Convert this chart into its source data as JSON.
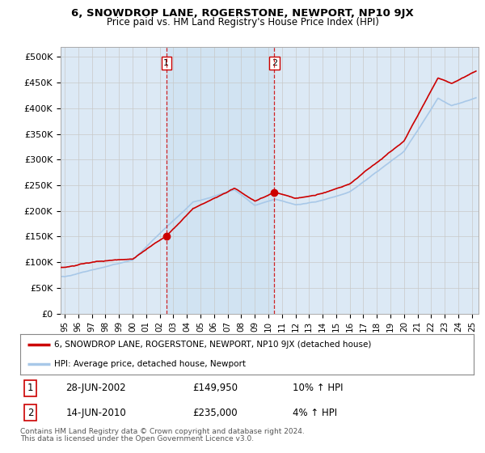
{
  "title": "6, SNOWDROP LANE, ROGERSTONE, NEWPORT, NP10 9JX",
  "subtitle": "Price paid vs. HM Land Registry's House Price Index (HPI)",
  "legend_line1": "6, SNOWDROP LANE, ROGERSTONE, NEWPORT, NP10 9JX (detached house)",
  "legend_line2": "HPI: Average price, detached house, Newport",
  "table_rows": [
    {
      "num": "1",
      "date": "28-JUN-2002",
      "price": "£149,950",
      "change": "10% ↑ HPI"
    },
    {
      "num": "2",
      "date": "14-JUN-2010",
      "price": "£235,000",
      "change": "4% ↑ HPI"
    }
  ],
  "footnote1": "Contains HM Land Registry data © Crown copyright and database right 2024.",
  "footnote2": "This data is licensed under the Open Government Licence v3.0.",
  "ylabel_ticks": [
    "£0",
    "£50K",
    "£100K",
    "£150K",
    "£200K",
    "£250K",
    "£300K",
    "£350K",
    "£400K",
    "£450K",
    "£500K"
  ],
  "ytick_values": [
    0,
    50000,
    100000,
    150000,
    200000,
    250000,
    300000,
    350000,
    400000,
    450000,
    500000
  ],
  "ylim": [
    0,
    520000
  ],
  "hpi_color": "#a8c8e8",
  "price_color": "#cc0000",
  "bg_color": "#dce9f5",
  "shaded_color": "#c8dff0",
  "marker_color": "#cc0000",
  "vline_color": "#cc0000",
  "grid_color": "#c8c8c8",
  "sale1_x": 2002.49,
  "sale1_y": 149950,
  "sale2_x": 2010.45,
  "sale2_y": 235000,
  "xmin": 1994.7,
  "xmax": 2025.5
}
